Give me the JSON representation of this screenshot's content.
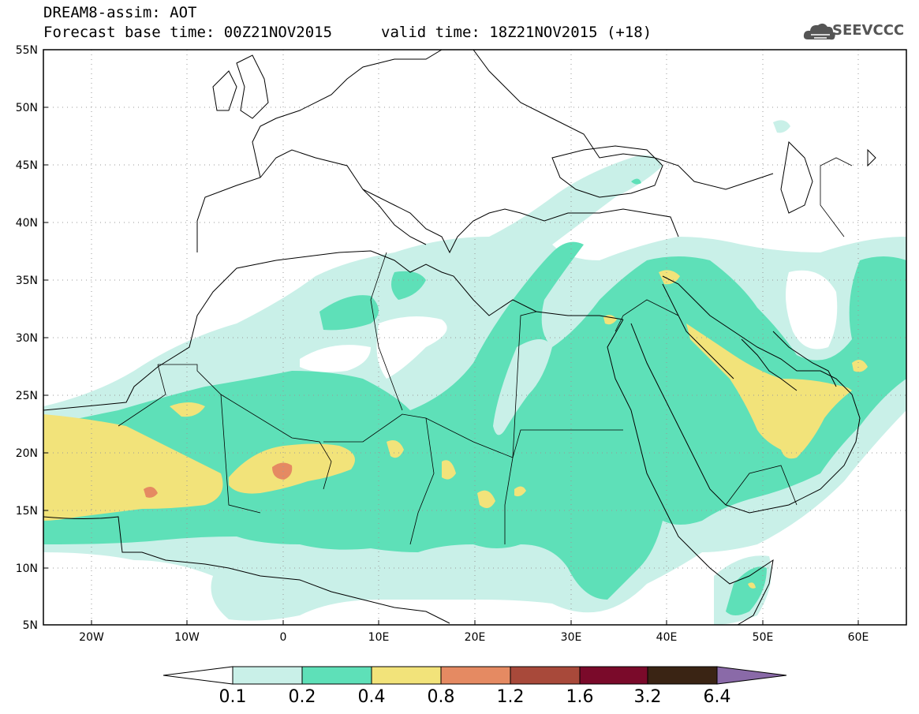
{
  "header": {
    "title": "DREAM8-assim: AOT",
    "base_time": "Forecast base time: 00Z21NOV2015",
    "valid_time": "valid time: 18Z21NOV2015 (+18)",
    "logo_text": "SEEVCCC",
    "logo_icon": "cloud-icon"
  },
  "map": {
    "lat_labels": [
      "55N",
      "50N",
      "45N",
      "40N",
      "35N",
      "30N",
      "25N",
      "20N",
      "15N",
      "10N",
      "5N"
    ],
    "lon_labels": [
      "20W",
      "10W",
      "0",
      "10E",
      "20E",
      "30E",
      "40E",
      "50E",
      "60E"
    ],
    "grid": true
  },
  "colorbar": {
    "labels": [
      "0.1",
      "0.2",
      "0.4",
      "0.8",
      "1.2",
      "1.6",
      "3.2",
      "6.4"
    ],
    "colors": {
      "under": "#ffffff",
      "c1": "#c9f0e8",
      "c2": "#5ee0b8",
      "c3": "#f2e37a",
      "c4": "#e58a62",
      "c5": "#a8493a",
      "c6": "#7a0a2a",
      "c7": "#3a2414",
      "over": "#8a6aa8"
    }
  }
}
